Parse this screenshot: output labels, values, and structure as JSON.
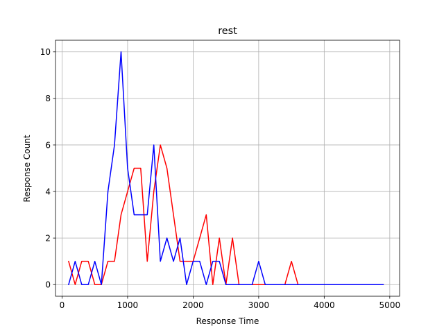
{
  "chart_data": {
    "type": "line",
    "title": "rest",
    "xlabel": "Response Time",
    "ylabel": "Response Count",
    "xlim": [
      -100,
      5150
    ],
    "ylim": [
      -0.5,
      10.5
    ],
    "xticks": [
      0,
      1000,
      2000,
      3000,
      4000,
      5000
    ],
    "yticks": [
      0,
      2,
      4,
      6,
      8,
      10
    ],
    "grid": true,
    "x": [
      100,
      200,
      300,
      400,
      500,
      600,
      700,
      800,
      900,
      1000,
      1100,
      1200,
      1300,
      1400,
      1500,
      1600,
      1700,
      1800,
      1900,
      2000,
      2100,
      2200,
      2300,
      2400,
      2500,
      2600,
      2700,
      2800,
      2900,
      3000,
      3100,
      3200,
      3300,
      3400,
      3500,
      3600,
      3700,
      3800,
      3900,
      4000,
      4100,
      4200,
      4300,
      4400,
      4500,
      4600,
      4700,
      4800,
      4900
    ],
    "series": [
      {
        "color": "#ff0000",
        "values": [
          1,
          0,
          1,
          1,
          0,
          0,
          1,
          1,
          3,
          4,
          5,
          5,
          1,
          4,
          6,
          5,
          3,
          1,
          1,
          1,
          2,
          3,
          0,
          2,
          0,
          2,
          0,
          0,
          0,
          0,
          0,
          0,
          0,
          0,
          1,
          0,
          0,
          0,
          0,
          0,
          0,
          0,
          0,
          0,
          0,
          0,
          0,
          0,
          0
        ]
      },
      {
        "color": "#0000ff",
        "values": [
          0,
          1,
          0,
          0,
          1,
          0,
          4,
          6,
          10,
          5,
          3,
          3,
          3,
          6,
          1,
          2,
          1,
          2,
          0,
          1,
          1,
          0,
          1,
          1,
          0,
          0,
          0,
          0,
          0,
          1,
          0,
          0,
          0,
          0,
          0,
          0,
          0,
          0,
          0,
          0,
          0,
          0,
          0,
          0,
          0,
          0,
          0,
          0,
          0
        ]
      }
    ]
  }
}
